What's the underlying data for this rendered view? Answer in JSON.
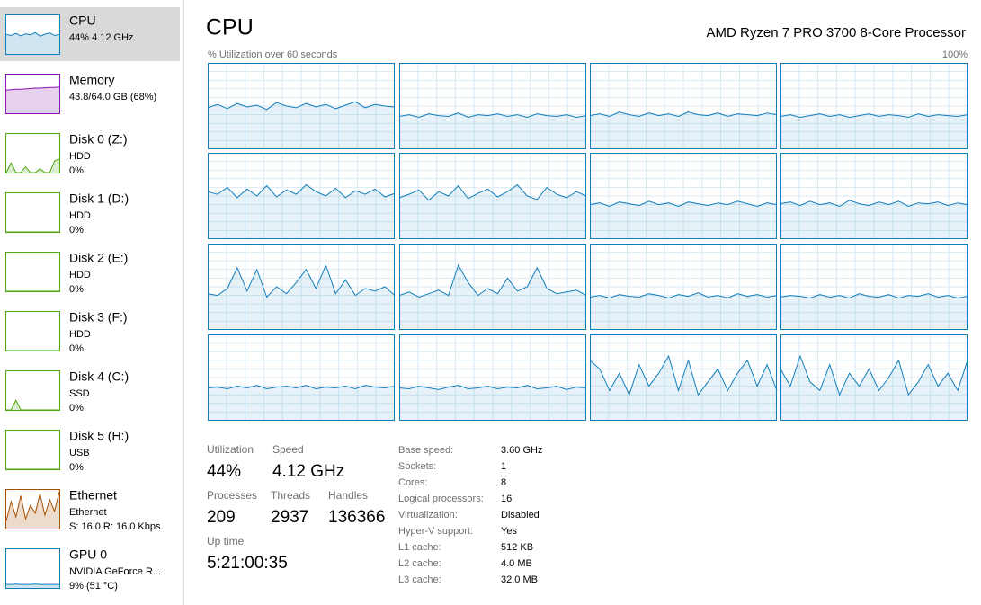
{
  "sidebar": [
    {
      "name": "CPU",
      "lines": [
        "44% 4.12 GHz"
      ],
      "color": "#117dbb",
      "graph": [
        50,
        48,
        53,
        47,
        52,
        49,
        55,
        46,
        51,
        54,
        48,
        50
      ]
    },
    {
      "name": "Memory",
      "lines": [
        "43.8/64.0 GB (68%)"
      ],
      "color": "#8b12ae",
      "graph": [
        60,
        61,
        62,
        62,
        63,
        64,
        65,
        65,
        66,
        67,
        67,
        68
      ]
    },
    {
      "name": "Disk 0 (Z:)",
      "lines": [
        "HDD",
        "0%"
      ],
      "color": "#4da60c",
      "graph": [
        0,
        25,
        0,
        0,
        15,
        0,
        0,
        10,
        0,
        0,
        30,
        35
      ]
    },
    {
      "name": "Disk 1 (D:)",
      "lines": [
        "HDD",
        "0%"
      ],
      "color": "#4da60c",
      "graph": [
        0,
        0,
        0,
        0,
        0,
        0,
        0,
        0,
        0,
        0,
        0,
        0
      ]
    },
    {
      "name": "Disk 2 (E:)",
      "lines": [
        "HDD",
        "0%"
      ],
      "color": "#4da60c",
      "graph": [
        0,
        0,
        0,
        0,
        0,
        0,
        0,
        0,
        0,
        0,
        0,
        0
      ]
    },
    {
      "name": "Disk 3 (F:)",
      "lines": [
        "HDD",
        "0%"
      ],
      "color": "#4da60c",
      "graph": [
        0,
        0,
        0,
        0,
        0,
        0,
        0,
        0,
        0,
        0,
        0,
        0
      ]
    },
    {
      "name": "Disk 4 (C:)",
      "lines": [
        "SSD",
        "0%"
      ],
      "color": "#4da60c",
      "graph": [
        0,
        0,
        25,
        0,
        0,
        0,
        0,
        0,
        0,
        0,
        0,
        0
      ]
    },
    {
      "name": "Disk 5 (H:)",
      "lines": [
        "USB",
        "0%"
      ],
      "color": "#4da60c",
      "graph": [
        0,
        0,
        0,
        0,
        0,
        0,
        0,
        0,
        0,
        0,
        0,
        0
      ]
    },
    {
      "name": "Ethernet",
      "lines": [
        "Ethernet",
        "S: 16.0 R: 16.0 Kbps"
      ],
      "color": "#a74f01",
      "graph": [
        20,
        70,
        30,
        85,
        25,
        60,
        40,
        90,
        35,
        75,
        45,
        95
      ]
    },
    {
      "name": "GPU 0",
      "lines": [
        "NVIDIA GeForce R...",
        "9% (51 °C)"
      ],
      "color": "#117dbb",
      "graph": [
        9,
        9,
        10,
        9,
        9,
        9,
        10,
        9,
        9,
        9,
        9,
        9
      ]
    }
  ],
  "header": {
    "title": "CPU",
    "processor": "AMD Ryzen 7 PRO 3700 8-Core Processor"
  },
  "graph": {
    "label": "% Utilization over 60 seconds",
    "max_label": "100%",
    "ylim": [
      0,
      100
    ],
    "color": "#117dbb",
    "cores": [
      [
        48,
        52,
        47,
        53,
        49,
        51,
        46,
        54,
        50,
        48,
        53,
        49,
        52,
        47,
        51,
        55,
        48,
        52,
        50,
        49
      ],
      [
        38,
        40,
        37,
        41,
        39,
        38,
        42,
        37,
        40,
        39,
        41,
        38,
        40,
        37,
        41,
        39,
        38,
        40,
        37,
        39
      ],
      [
        39,
        41,
        38,
        43,
        40,
        38,
        42,
        39,
        41,
        38,
        43,
        40,
        39,
        42,
        38,
        41,
        40,
        39,
        42,
        40
      ],
      [
        38,
        40,
        37,
        39,
        41,
        38,
        40,
        37,
        39,
        41,
        38,
        40,
        39,
        37,
        41,
        38,
        40,
        39,
        38,
        40
      ],
      [
        55,
        52,
        60,
        48,
        58,
        50,
        62,
        49,
        57,
        52,
        63,
        55,
        50,
        59,
        48,
        56,
        52,
        58,
        49,
        53
      ],
      [
        48,
        52,
        57,
        45,
        55,
        50,
        62,
        47,
        53,
        58,
        49,
        55,
        63,
        50,
        46,
        60,
        52,
        48,
        55,
        50
      ],
      [
        40,
        42,
        38,
        43,
        41,
        39,
        44,
        40,
        42,
        38,
        43,
        41,
        39,
        42,
        40,
        44,
        41,
        38,
        42,
        40
      ],
      [
        41,
        43,
        39,
        44,
        40,
        42,
        38,
        45,
        41,
        39,
        43,
        40,
        44,
        38,
        42,
        41,
        43,
        39,
        42,
        40
      ],
      [
        42,
        40,
        48,
        72,
        45,
        70,
        38,
        50,
        42,
        55,
        70,
        48,
        75,
        42,
        58,
        40,
        48,
        45,
        50,
        40
      ],
      [
        40,
        44,
        38,
        42,
        46,
        40,
        75,
        55,
        40,
        48,
        42,
        60,
        45,
        50,
        72,
        48,
        42,
        44,
        46,
        40
      ],
      [
        38,
        40,
        37,
        41,
        39,
        38,
        42,
        40,
        37,
        41,
        39,
        43,
        38,
        40,
        37,
        42,
        39,
        41,
        38,
        40
      ],
      [
        38,
        40,
        39,
        37,
        41,
        38,
        40,
        37,
        42,
        39,
        38,
        41,
        37,
        40,
        39,
        42,
        38,
        40,
        37,
        39
      ],
      [
        38,
        39,
        37,
        40,
        38,
        41,
        37,
        39,
        40,
        38,
        41,
        37,
        39,
        38,
        40,
        37,
        41,
        39,
        38,
        40
      ],
      [
        38,
        37,
        40,
        38,
        36,
        39,
        41,
        37,
        38,
        40,
        37,
        39,
        38,
        41,
        37,
        38,
        40,
        36,
        39,
        38
      ],
      [
        70,
        60,
        35,
        55,
        30,
        65,
        40,
        55,
        75,
        35,
        70,
        30,
        45,
        60,
        35,
        55,
        70,
        40,
        65,
        35
      ],
      [
        60,
        40,
        75,
        45,
        35,
        65,
        30,
        55,
        40,
        60,
        35,
        50,
        70,
        30,
        45,
        65,
        40,
        55,
        35,
        70
      ]
    ]
  },
  "stats": [
    {
      "label": "Utilization",
      "value": "44%"
    },
    {
      "label": "Speed",
      "value": "4.12 GHz"
    },
    {
      "label": "Processes",
      "value": "209"
    },
    {
      "label": "Threads",
      "value": "2937"
    },
    {
      "label": "Handles",
      "value": "136366"
    },
    {
      "label": "Up time",
      "value": "5:21:00:35"
    }
  ],
  "details": [
    [
      "Base speed:",
      "3.60 GHz"
    ],
    [
      "Sockets:",
      "1"
    ],
    [
      "Cores:",
      "8"
    ],
    [
      "Logical processors:",
      "16"
    ],
    [
      "Virtualization:",
      "Disabled"
    ],
    [
      "Hyper-V support:",
      "Yes"
    ],
    [
      "L1 cache:",
      "512 KB"
    ],
    [
      "L2 cache:",
      "4.0 MB"
    ],
    [
      "L3 cache:",
      "32.0 MB"
    ]
  ]
}
